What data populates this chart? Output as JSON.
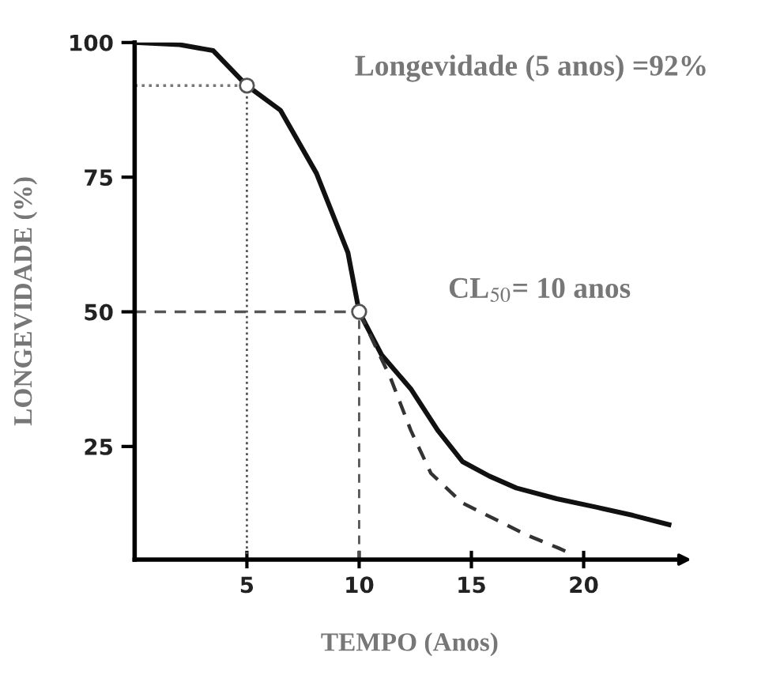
{
  "chart_data": {
    "type": "line",
    "xlabel": "TEMPO (Anos)",
    "ylabel": "LONGEVIDADE (%)",
    "annotations": [
      "Longevidade (5 anos) =92%",
      "CL$_{50}$= 10 anos"
    ],
    "series": [
      {
        "color": "#111111",
        "line_style": "solid",
        "x": [
          0,
          2,
          3.5,
          5,
          6.5,
          8.1,
          9.5,
          10,
          11,
          12.3,
          13.5,
          14.6,
          15.8,
          17,
          18.8,
          20.6,
          22.2,
          23.8
        ],
        "values": [
          100,
          99.6,
          98.5,
          92,
          87.4,
          75.7,
          61,
          50,
          42,
          35.7,
          28,
          22.2,
          19.5,
          17.3,
          15.3,
          13.7,
          12.2,
          10.5
        ]
      },
      {
        "color": "#333333",
        "line_style": "dashed",
        "x": [
          10,
          11.4,
          12.3,
          13.2,
          14.6,
          16.1,
          17.5,
          18.9,
          19.5
        ],
        "values": [
          50,
          37.7,
          28,
          20,
          14.5,
          11.4,
          8.5,
          6.1,
          5
        ]
      },
      {
        "type": "scatter",
        "color": "#555555",
        "marker": "circle",
        "x": [
          5,
          10
        ],
        "values": [
          92,
          50
        ]
      }
    ],
    "ref_lines": [
      {
        "axis": "y",
        "value": 92,
        "line_style": "dotted",
        "color": "#777777"
      },
      {
        "axis": "x",
        "value": 5,
        "line_style": "dotted",
        "color": "#555555"
      },
      {
        "axis": "y",
        "value": 50,
        "line_style": "dashed",
        "color": "#555555"
      },
      {
        "axis": "x",
        "value": 10,
        "line_style": "dashed",
        "color": "#555555"
      }
    ],
    "xlim": [
      0,
      24.5
    ],
    "ylim": [
      4,
      100
    ],
    "xticks": [
      5,
      10,
      15,
      20
    ],
    "yticks": [
      25,
      50,
      75,
      100
    ],
    "grid": false,
    "legend": false
  }
}
